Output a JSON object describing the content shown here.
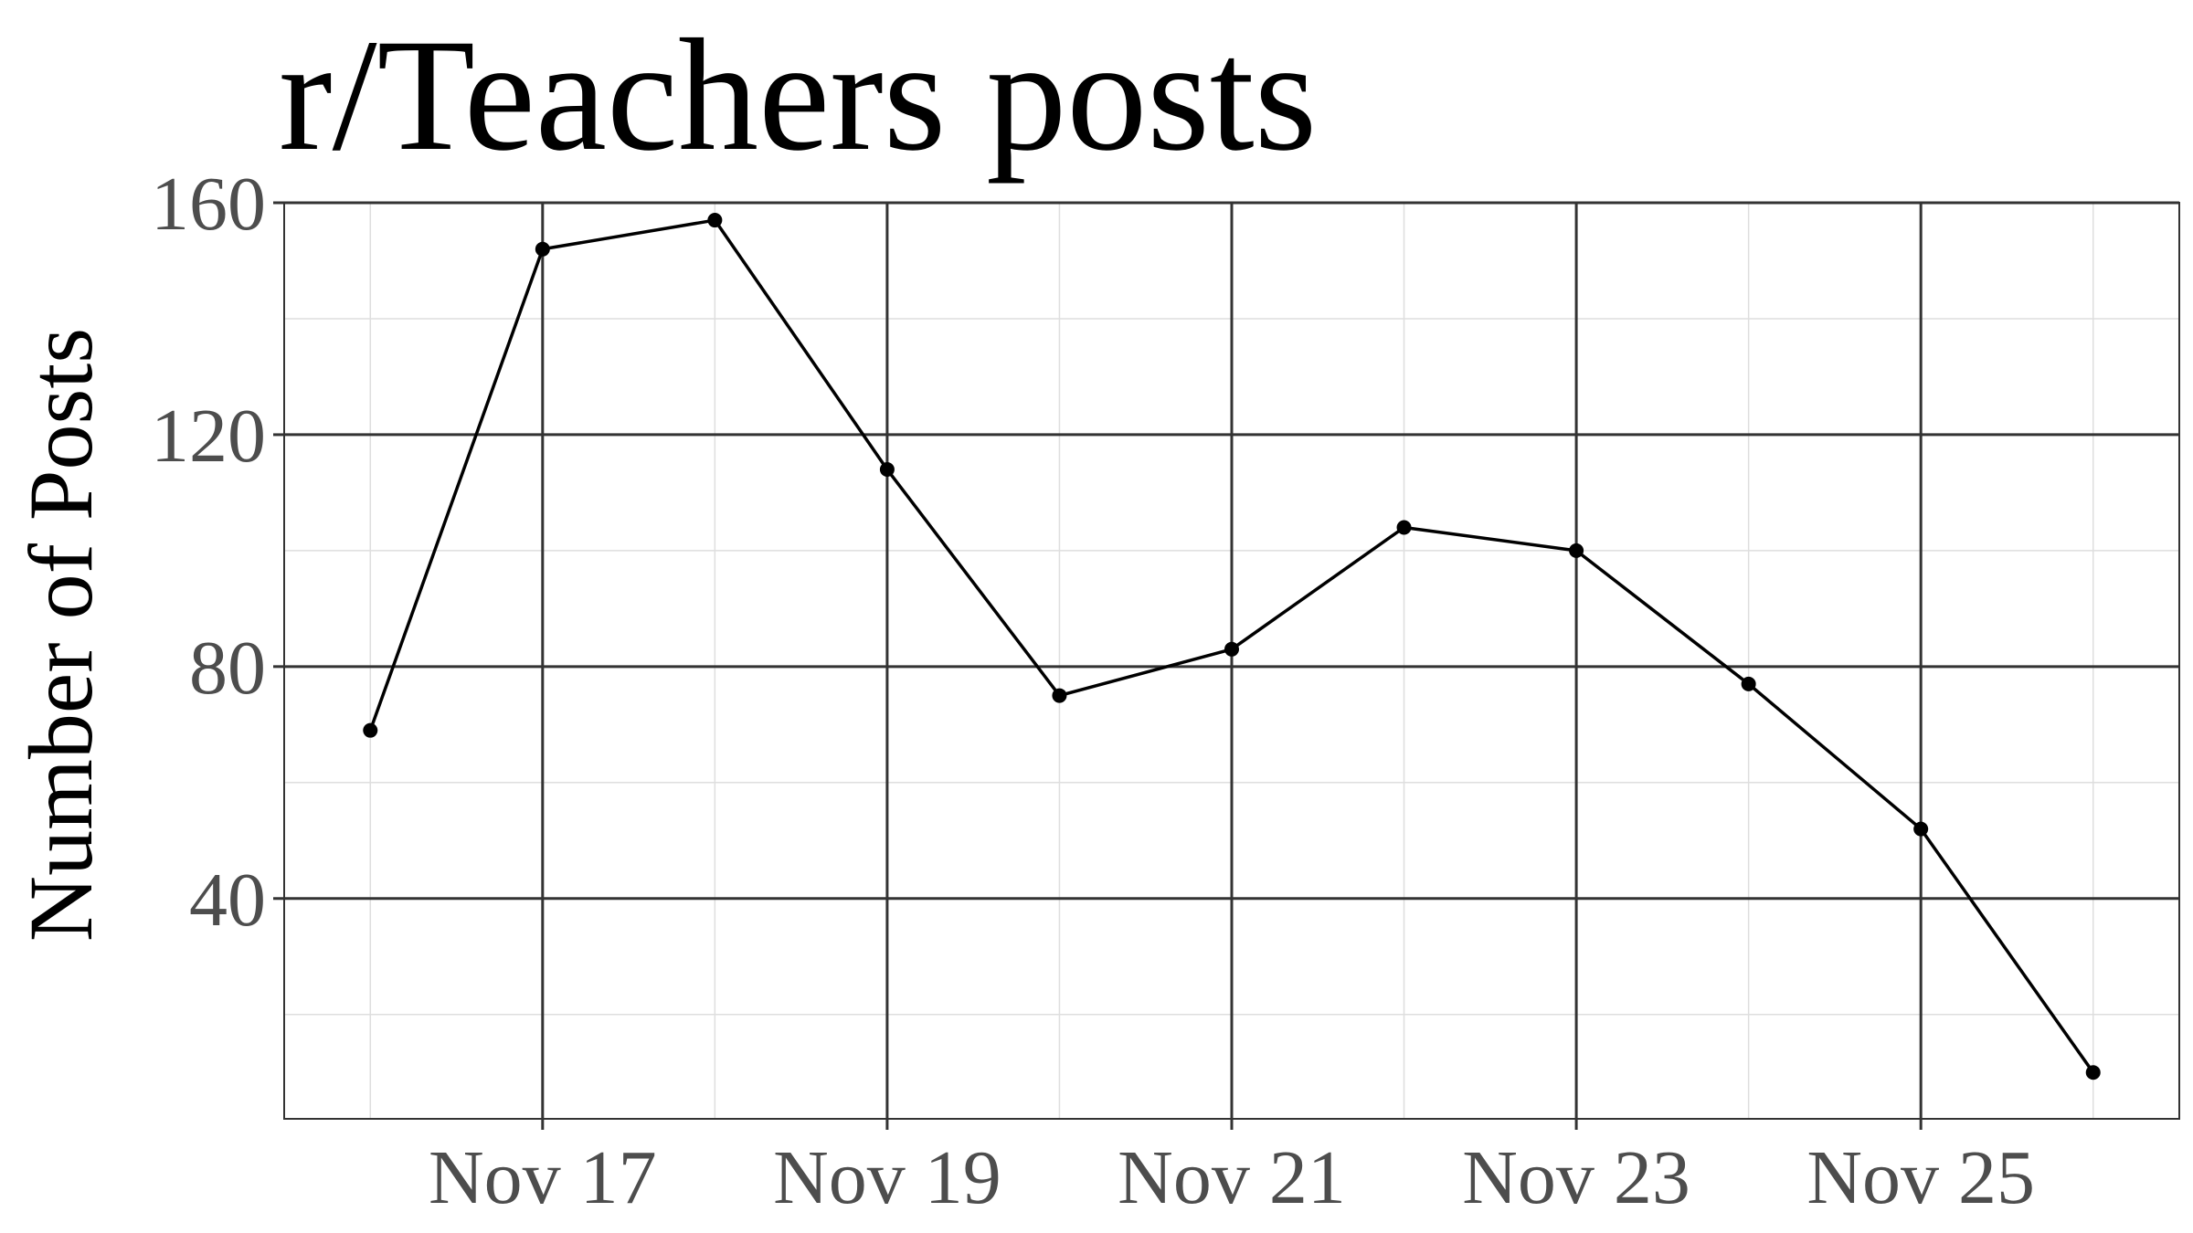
{
  "chart_data": {
    "type": "line",
    "title": "r/Teachers posts",
    "xlabel": "",
    "ylabel": "Number of Posts",
    "x": [
      "Nov 16",
      "Nov 17",
      "Nov 18",
      "Nov 19",
      "Nov 20",
      "Nov 21",
      "Nov 22",
      "Nov 23",
      "Nov 24",
      "Nov 25",
      "Nov 26"
    ],
    "series": [
      {
        "values": [
          69,
          152,
          157,
          114,
          75,
          83,
          104,
          100,
          77,
          52,
          10
        ]
      }
    ],
    "x_ticks": [
      "Nov 17",
      "Nov 19",
      "Nov 21",
      "Nov 23",
      "Nov 25"
    ],
    "y_ticks": [
      40,
      80,
      120,
      160
    ],
    "xlim": [
      "Nov 15.5",
      "Nov 26.5"
    ],
    "ylim": [
      2,
      160
    ],
    "grid": true,
    "colors": {
      "line": "#000000",
      "point": "#000000",
      "major_grid": "#333333",
      "minor_grid": "#dedede",
      "tick_label": "#4d4d4d",
      "panel_border": "#333333"
    }
  }
}
